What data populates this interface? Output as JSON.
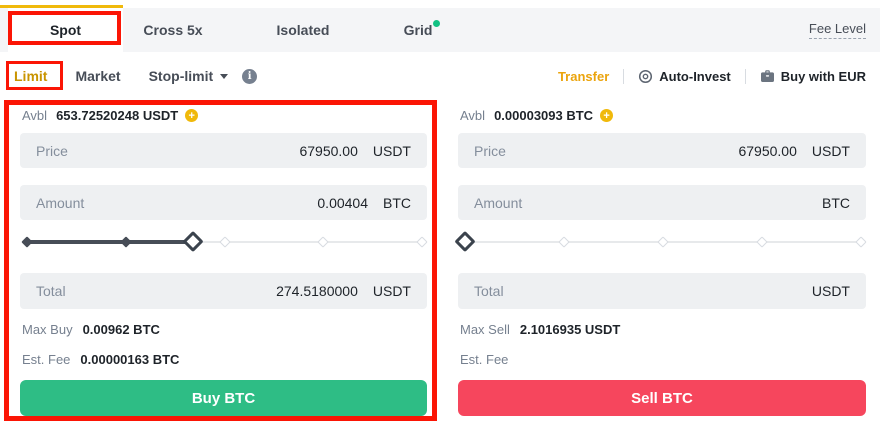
{
  "colors": {
    "accent_gold": "#F0B90B",
    "buy_green": "#2EBD85",
    "sell_red": "#F6465D",
    "annotation_red": "#FB1505",
    "grid_dot_green": "#12C183"
  },
  "icons": {
    "info": "i",
    "plus": "+"
  },
  "tabbar": {
    "tabs": [
      {
        "label": "Spot"
      },
      {
        "label": "Cross 5x"
      },
      {
        "label": "Isolated"
      },
      {
        "label": "Grid"
      }
    ],
    "fee_level": "Fee Level"
  },
  "order_types": {
    "limit": "Limit",
    "market": "Market",
    "stop_limit": "Stop-limit"
  },
  "actions": {
    "transfer": "Transfer",
    "auto_invest": "Auto-Invest",
    "buy_with_eur": "Buy with EUR"
  },
  "buy_panel": {
    "avbl_label": "Avbl",
    "avbl_value": "653.72520248 USDT",
    "price_label": "Price",
    "price_value": "67950.00",
    "price_unit": "USDT",
    "amount_label": "Amount",
    "amount_value": "0.00404",
    "amount_unit": "BTC",
    "slider_percent": 42,
    "total_label": "Total",
    "total_value": "274.5180000",
    "total_unit": "USDT",
    "max_label": "Max Buy",
    "max_value": "0.00962 BTC",
    "fee_label": "Est. Fee",
    "fee_value": "0.00000163 BTC",
    "button_label": "Buy BTC"
  },
  "sell_panel": {
    "avbl_label": "Avbl",
    "avbl_value": "0.00003093 BTC",
    "price_label": "Price",
    "price_value": "67950.00",
    "price_unit": "USDT",
    "amount_label": "Amount",
    "amount_value": "",
    "amount_unit": "BTC",
    "slider_percent": 0,
    "total_label": "Total",
    "total_value": "",
    "total_unit": "USDT",
    "max_label": "Max Sell",
    "max_value": "2.1016935 USDT",
    "fee_label": "Est. Fee",
    "fee_value": "",
    "button_label": "Sell BTC"
  }
}
